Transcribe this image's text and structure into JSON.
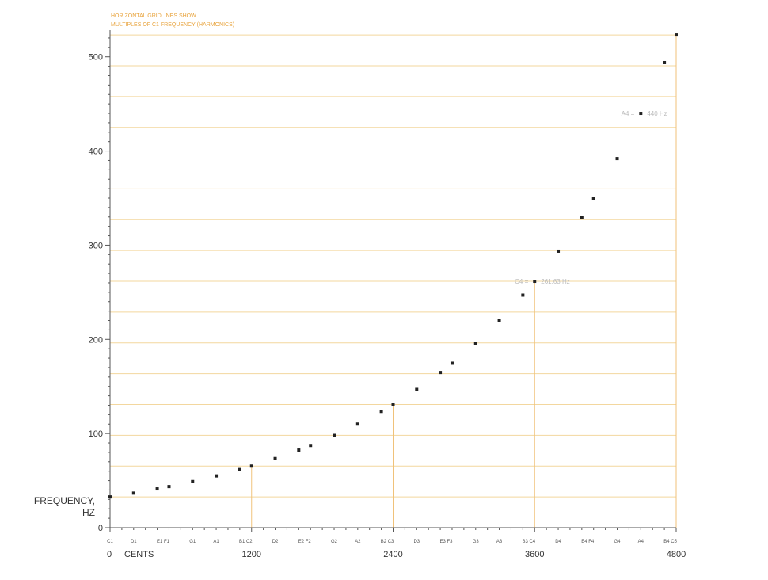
{
  "chart_data": {
    "type": "scatter",
    "title": "",
    "notes": [
      "HORIZONTAL GRIDLINES SHOW",
      "MULTIPLES OF C1 FREQUENCY (HARMONICS)"
    ],
    "ylabel_lines": [
      "FREQUENCY,",
      "HZ"
    ],
    "xlabel": "CENTS",
    "xlim": [
      0,
      4800
    ],
    "ylim": [
      0,
      525
    ],
    "y_ticks": [
      0,
      100,
      200,
      300,
      400,
      500
    ],
    "x_ticks": [
      0,
      1200,
      2400,
      3600,
      4800
    ],
    "harmonic_gridlines": [
      32.7,
      65.41,
      98.11,
      130.81,
      163.52,
      196.22,
      228.92,
      261.63,
      294.33,
      327.03,
      359.73,
      392.44,
      425.14,
      457.84,
      490.55,
      523.25
    ],
    "vertical_markers": [
      1200,
      2400,
      3600,
      4800
    ],
    "series": [
      {
        "points": [
          {
            "cents": 0,
            "hz": 32.7
          },
          {
            "cents": 200,
            "hz": 36.71
          },
          {
            "cents": 400,
            "hz": 41.2
          },
          {
            "cents": 500,
            "hz": 43.65
          },
          {
            "cents": 700,
            "hz": 49.0
          },
          {
            "cents": 900,
            "hz": 55.0
          },
          {
            "cents": 1100,
            "hz": 61.74
          },
          {
            "cents": 1200,
            "hz": 65.41
          },
          {
            "cents": 1400,
            "hz": 73.42
          },
          {
            "cents": 1600,
            "hz": 82.41
          },
          {
            "cents": 1700,
            "hz": 87.31
          },
          {
            "cents": 1900,
            "hz": 98.0
          },
          {
            "cents": 2100,
            "hz": 110.0
          },
          {
            "cents": 2300,
            "hz": 123.47
          },
          {
            "cents": 2400,
            "hz": 130.81
          },
          {
            "cents": 2600,
            "hz": 146.83
          },
          {
            "cents": 2800,
            "hz": 164.81
          },
          {
            "cents": 2900,
            "hz": 174.61
          },
          {
            "cents": 3100,
            "hz": 196.0
          },
          {
            "cents": 3300,
            "hz": 220.0
          },
          {
            "cents": 3500,
            "hz": 246.94
          },
          {
            "cents": 3600,
            "hz": 261.63
          },
          {
            "cents": 3800,
            "hz": 293.66
          },
          {
            "cents": 4000,
            "hz": 329.63
          },
          {
            "cents": 4100,
            "hz": 349.23
          },
          {
            "cents": 4300,
            "hz": 392.0
          },
          {
            "cents": 4500,
            "hz": 440.0
          },
          {
            "cents": 4700,
            "hz": 493.88
          },
          {
            "cents": 4800,
            "hz": 523.25
          }
        ]
      }
    ],
    "note_labels": [
      {
        "cents": 0,
        "label": "C1"
      },
      {
        "cents": 200,
        "label": "D1"
      },
      {
        "cents": 450,
        "label": "E1 F1"
      },
      {
        "cents": 700,
        "label": "G1"
      },
      {
        "cents": 900,
        "label": "A1"
      },
      {
        "cents": 1150,
        "label": "B1 C2"
      },
      {
        "cents": 1400,
        "label": "D2"
      },
      {
        "cents": 1650,
        "label": "E2 F2"
      },
      {
        "cents": 1900,
        "label": "G2"
      },
      {
        "cents": 2100,
        "label": "A2"
      },
      {
        "cents": 2350,
        "label": "B2 C3"
      },
      {
        "cents": 2600,
        "label": "D3"
      },
      {
        "cents": 2850,
        "label": "E3 F3"
      },
      {
        "cents": 3100,
        "label": "G3"
      },
      {
        "cents": 3300,
        "label": "A3"
      },
      {
        "cents": 3550,
        "label": "B3 C4"
      },
      {
        "cents": 3800,
        "label": "D4"
      },
      {
        "cents": 4050,
        "label": "E4 F4"
      },
      {
        "cents": 4300,
        "label": "G4"
      },
      {
        "cents": 4500,
        "label": "A4"
      },
      {
        "cents": 4750,
        "label": "B4 C5"
      }
    ],
    "annotations": [
      {
        "cents": 3600,
        "hz": 261.63,
        "text": "C4 = 261.63 Hz",
        "side": "both"
      },
      {
        "cents": 4500,
        "hz": 440.0,
        "text": "A4 = 440 Hz",
        "side": "both"
      }
    ],
    "colors": {
      "grid": "#f3d79e",
      "marker_line": "#f0c27a",
      "note_text": "#e8a33c",
      "point": "#222222",
      "axis": "#555555",
      "text": "#333333",
      "annotation": "#bbbbbb"
    }
  }
}
